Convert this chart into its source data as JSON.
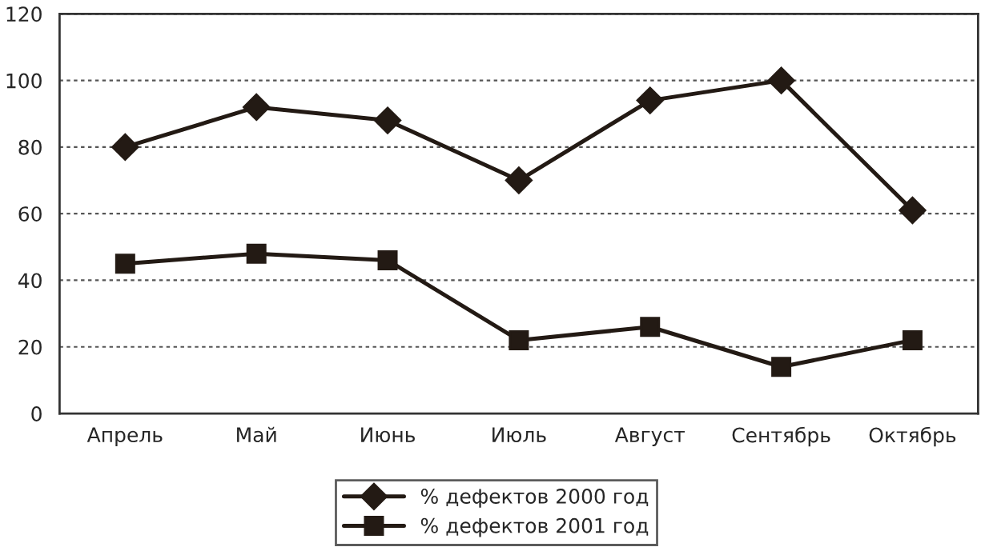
{
  "chart_data": {
    "type": "line",
    "categories": [
      "Апрель",
      "Май",
      "Июнь",
      "Июль",
      "Август",
      "Сентябрь",
      "Октябрь"
    ],
    "series": [
      {
        "name": "% дефектов 2000 год",
        "color": "#231a14",
        "marker": "diamond",
        "values": [
          80,
          92,
          88,
          70,
          94,
          100,
          61
        ]
      },
      {
        "name": "% дефектов 2001 год",
        "color": "#231a14",
        "marker": "square",
        "values": [
          45,
          48,
          46,
          22,
          26,
          14,
          22
        ]
      }
    ],
    "ylim": [
      0,
      120
    ],
    "yticks": [
      0,
      20,
      40,
      60,
      80,
      100,
      120
    ],
    "grid": "y",
    "legend": "bottom",
    "line_style": "solid"
  }
}
